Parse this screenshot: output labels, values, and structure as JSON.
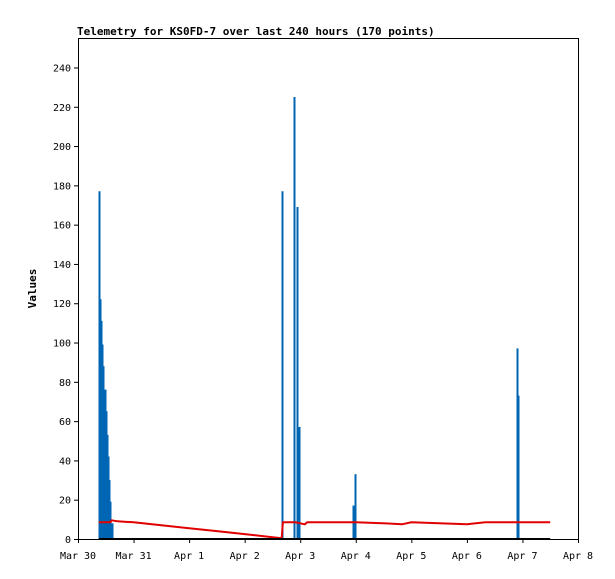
{
  "chart_data": {
    "type": "line",
    "title": "Telemetry for KS0FD-7 over last 240 hours (170 points)",
    "xlabel": "",
    "ylabel": "Values",
    "x_ticks": [
      "Mar 30",
      "Mar 31",
      "Apr 1",
      "Apr 2",
      "Apr 3",
      "Apr 4",
      "Apr 5",
      "Apr 6",
      "Apr 7",
      "Apr 8"
    ],
    "y_ticks": [
      "0",
      "20",
      "40",
      "60",
      "80",
      "100",
      "120",
      "140",
      "160",
      "180",
      "200",
      "220",
      "240"
    ],
    "xlim": [
      "Mar 30",
      "Apr 8"
    ],
    "ylim": [
      0,
      255
    ],
    "grid": false,
    "series": [
      {
        "color": "#0066b3",
        "style": "spikes",
        "points": [
          [
            "Mar 30 09:00",
            177
          ],
          [
            "Mar 30 09:30",
            122
          ],
          [
            "Mar 30 10:00",
            111
          ],
          [
            "Mar 30 10:30",
            99
          ],
          [
            "Mar 30 11:00",
            88
          ],
          [
            "Mar 30 11:30",
            76
          ],
          [
            "Mar 30 12:00",
            65
          ],
          [
            "Mar 30 12:30",
            53
          ],
          [
            "Mar 30 13:00",
            42
          ],
          [
            "Mar 30 13:30",
            30
          ],
          [
            "Mar 30 14:00",
            19
          ],
          [
            "Mar 30 14:30",
            8
          ],
          [
            "Apr 2 16:00",
            177
          ],
          [
            "Apr 2 21:30",
            225
          ],
          [
            "Apr 2 22:30",
            169
          ],
          [
            "Apr 2 23:30",
            57
          ],
          [
            "Apr 3 23:00",
            17
          ],
          [
            "Apr 3 23:30",
            33
          ],
          [
            "Apr 6 21:30",
            97
          ],
          [
            "Apr 6 22:00",
            73
          ]
        ]
      },
      {
        "color": "#e00000",
        "style": "line",
        "points": [
          [
            "Mar 30 09:00",
            8.5
          ],
          [
            "Mar 30 14:00",
            8.5
          ],
          [
            "Mar 30 14:30",
            9.5
          ],
          [
            "Mar 30 17:00",
            9
          ],
          [
            "Mar 31 00:00",
            8.5
          ],
          [
            "Mar 31 12:00",
            7
          ],
          [
            "Apr 1 00:00",
            5.5
          ],
          [
            "Apr 1 12:00",
            4
          ],
          [
            "Apr 2 00:00",
            2.5
          ],
          [
            "Apr 2 15:00",
            0.5
          ],
          [
            "Apr 2 16:00",
            0.5
          ],
          [
            "Apr 2 16:30",
            8.5
          ],
          [
            "Apr 2 22:00",
            8.5
          ],
          [
            "Apr 3 00:00",
            8
          ],
          [
            "Apr 3 02:00",
            7.5
          ],
          [
            "Apr 3 03:00",
            8.5
          ],
          [
            "Apr 3 12:00",
            8.5
          ],
          [
            "Apr 4 00:00",
            8.5
          ],
          [
            "Apr 4 12:00",
            8
          ],
          [
            "Apr 4 20:00",
            7.5
          ],
          [
            "Apr 5 00:00",
            8.5
          ],
          [
            "Apr 5 12:00",
            8
          ],
          [
            "Apr 6 00:00",
            7.5
          ],
          [
            "Apr 6 08:00",
            8.5
          ],
          [
            "Apr 7 12:00",
            8.5
          ]
        ]
      },
      {
        "color": "#000000",
        "style": "line",
        "points": [
          [
            "Mar 30 09:00",
            0
          ],
          [
            "Apr 7 12:00",
            0
          ]
        ]
      }
    ]
  }
}
